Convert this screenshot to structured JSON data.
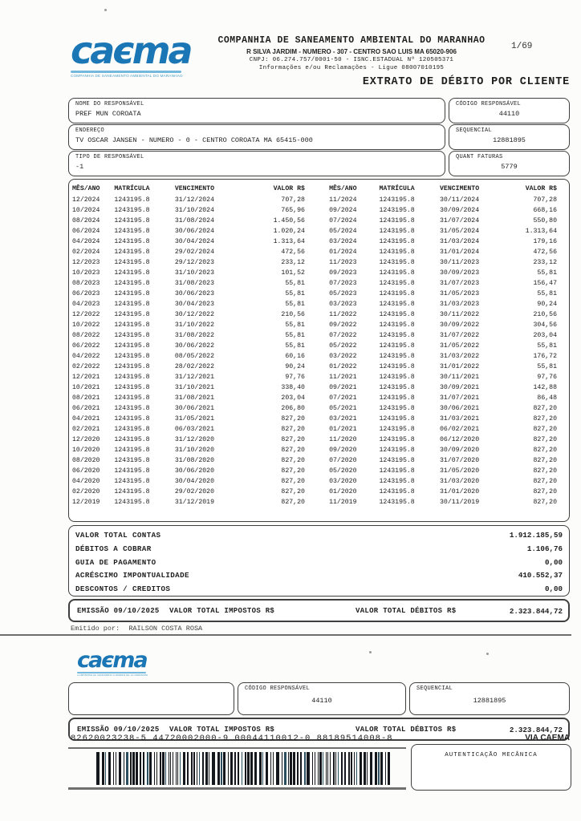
{
  "colors": {
    "brand": "#1a76b4",
    "brand_light": "#74b9dd"
  },
  "brand": {
    "word_start": "ca",
    "word_e": "є",
    "word_end": "ma",
    "tagline": "COMPANHIA DE SANEAMENTO AMBIENTAL DO MARANHÃO"
  },
  "page": {
    "number": "1/69"
  },
  "header": {
    "company_name": "COMPANHIA DE SANEAMENTO AMBIENTAL DO MARANHAO",
    "address": "R SILVA JARDIM - NUMERO - 307 - CENTRO SAO LUIS MA 65020-906",
    "registration": "CNPJ: 06.274.757/0001-50 - ISNC.ESTADUAL Nº 120505371",
    "contact": "Informações e/ou Reclamações - Ligue 08007010195",
    "title": "EXTRATO DE DÉBITO POR CLIENTE"
  },
  "customer": {
    "name_label": "NOME DO RESPONSÁVEL",
    "name": "PREF MUN COROATA",
    "code_label": "CÓDIGO RESPONSÁVEL",
    "code": "44110",
    "address_label": "ENDEREÇO",
    "address": "TV OSCAR JANSEN - NUMERO - 0 - CENTRO COROATA MA 65415-000",
    "sequential_label": "SEQUENCIAL",
    "sequential": "12881895",
    "type_label": "TIPO DE RESPONSÁVEL",
    "type": "-1",
    "invoices_label": "QUANT FATURAS",
    "invoices": "5779"
  },
  "table": {
    "headers": [
      "MÊS/ANO",
      "MATRÍCULA",
      "VENCIMENTO",
      "VALOR R$",
      "MÊS/ANO",
      "MATRÍCULA",
      "VENCIMENTO",
      "VALOR R$"
    ],
    "rows": [
      [
        "12/2024",
        "1243195.8",
        "31/12/2024",
        "707,28",
        "11/2024",
        "1243195.8",
        "30/11/2024",
        "707,28"
      ],
      [
        "10/2024",
        "1243195.8",
        "31/10/2024",
        "765,96",
        "09/2024",
        "1243195.8",
        "30/09/2024",
        "668,16"
      ],
      [
        "08/2024",
        "1243195.8",
        "31/08/2024",
        "1.450,56",
        "07/2024",
        "1243195.8",
        "31/07/2024",
        "550,80"
      ],
      [
        "06/2024",
        "1243195.8",
        "30/06/2024",
        "1.020,24",
        "05/2024",
        "1243195.8",
        "31/05/2024",
        "1.313,64"
      ],
      [
        "04/2024",
        "1243195.8",
        "30/04/2024",
        "1.313,64",
        "03/2024",
        "1243195.8",
        "31/03/2024",
        "179,16"
      ],
      [
        "02/2024",
        "1243195.8",
        "29/02/2024",
        "472,56",
        "01/2024",
        "1243195.8",
        "31/01/2024",
        "472,56"
      ],
      [
        "12/2023",
        "1243195.8",
        "29/12/2023",
        "233,12",
        "11/2023",
        "1243195.8",
        "30/11/2023",
        "233,12"
      ],
      [
        "10/2023",
        "1243195.8",
        "31/10/2023",
        "101,52",
        "09/2023",
        "1243195.8",
        "30/09/2023",
        "55,81"
      ],
      [
        "08/2023",
        "1243195.8",
        "31/08/2023",
        "55,81",
        "07/2023",
        "1243195.8",
        "31/07/2023",
        "156,47"
      ],
      [
        "06/2023",
        "1243195.8",
        "30/06/2023",
        "55,81",
        "05/2023",
        "1243195.8",
        "31/05/2023",
        "55,81"
      ],
      [
        "04/2023",
        "1243195.8",
        "30/04/2023",
        "55,81",
        "03/2023",
        "1243195.8",
        "31/03/2023",
        "90,24"
      ],
      [
        "12/2022",
        "1243195.8",
        "30/12/2022",
        "210,56",
        "11/2022",
        "1243195.8",
        "30/11/2022",
        "210,56"
      ],
      [
        "10/2022",
        "1243195.8",
        "31/10/2022",
        "55,81",
        "09/2022",
        "1243195.8",
        "30/09/2022",
        "304,56"
      ],
      [
        "08/2022",
        "1243195.8",
        "31/08/2022",
        "55,81",
        "07/2022",
        "1243195.8",
        "31/07/2022",
        "203,04"
      ],
      [
        "06/2022",
        "1243195.8",
        "30/06/2022",
        "55,81",
        "05/2022",
        "1243195.8",
        "31/05/2022",
        "55,81"
      ],
      [
        "04/2022",
        "1243195.8",
        "08/05/2022",
        "60,16",
        "03/2022",
        "1243195.8",
        "31/03/2022",
        "176,72"
      ],
      [
        "02/2022",
        "1243195.8",
        "28/02/2022",
        "90,24",
        "01/2022",
        "1243195.8",
        "31/01/2022",
        "55,81"
      ],
      [
        "12/2021",
        "1243195.8",
        "31/12/2021",
        "97,76",
        "11/2021",
        "1243195.8",
        "30/11/2021",
        "97,76"
      ],
      [
        "10/2021",
        "1243195.8",
        "31/10/2021",
        "338,40",
        "09/2021",
        "1243195.8",
        "30/09/2021",
        "142,88"
      ],
      [
        "08/2021",
        "1243195.8",
        "31/08/2021",
        "203,04",
        "07/2021",
        "1243195.8",
        "31/07/2021",
        "86,48"
      ],
      [
        "06/2021",
        "1243195.8",
        "30/06/2021",
        "206,80",
        "05/2021",
        "1243195.8",
        "30/06/2021",
        "827,20"
      ],
      [
        "04/2021",
        "1243195.8",
        "31/05/2021",
        "827,20",
        "03/2021",
        "1243195.8",
        "31/03/2021",
        "827,20"
      ],
      [
        "02/2021",
        "1243195.8",
        "06/03/2021",
        "827,20",
        "01/2021",
        "1243195.8",
        "06/02/2021",
        "827,20"
      ],
      [
        "12/2020",
        "1243195.8",
        "31/12/2020",
        "827,20",
        "11/2020",
        "1243195.8",
        "06/12/2020",
        "827,20"
      ],
      [
        "10/2020",
        "1243195.8",
        "31/10/2020",
        "827,20",
        "09/2020",
        "1243195.8",
        "30/09/2020",
        "827,20"
      ],
      [
        "08/2020",
        "1243195.8",
        "31/08/2020",
        "827,20",
        "07/2020",
        "1243195.8",
        "31/07/2020",
        "827,20"
      ],
      [
        "06/2020",
        "1243195.8",
        "30/06/2020",
        "827,20",
        "05/2020",
        "1243195.8",
        "31/05/2020",
        "827,20"
      ],
      [
        "04/2020",
        "1243195.8",
        "30/04/2020",
        "827,20",
        "03/2020",
        "1243195.8",
        "31/03/2020",
        "827,20"
      ],
      [
        "02/2020",
        "1243195.8",
        "29/02/2020",
        "827,20",
        "01/2020",
        "1243195.8",
        "31/01/2020",
        "827,20"
      ],
      [
        "12/2019",
        "1243195.8",
        "31/12/2019",
        "827,20",
        "11/2019",
        "1243195.8",
        "30/11/2019",
        "827,20"
      ]
    ]
  },
  "totals": {
    "rows": [
      {
        "label": "VALOR TOTAL CONTAS",
        "value": "1.912.185,59"
      },
      {
        "label": "DÉBITOS A COBRAR",
        "value": "1.106,76"
      },
      {
        "label": "GUIA DE PAGAMENTO",
        "value": "0,00"
      },
      {
        "label": "ACRÉSCIMO IMPONTUALIDADE",
        "value": "410.552,37"
      },
      {
        "label": "DESCONTOS / CREDITOS",
        "value": "0,00"
      }
    ]
  },
  "emission": {
    "issue_label": "EMISSÃO 09/10/2025",
    "taxes_label": "VALOR TOTAL IMPOSTOS R$",
    "debits_label": "VALOR TOTAL DÉBITOS R$",
    "debits_value": "2.323.844,72"
  },
  "issued_by": {
    "label": "Emitido por:",
    "name": "RAILSON COSTA ROSA"
  },
  "stub": {
    "code_label": "CÓDIGO RESPONSÁVEL",
    "code": "44110",
    "sequential_label": "SEQUENCIAL",
    "sequential": "12881895",
    "barcode_digits": "82620023238-5  44720002000-9  00044110012-0  88189514008-8",
    "via_label": "VIA CAEMA",
    "auth_label": "AUTENTICAÇÃO MECÂNICA"
  }
}
